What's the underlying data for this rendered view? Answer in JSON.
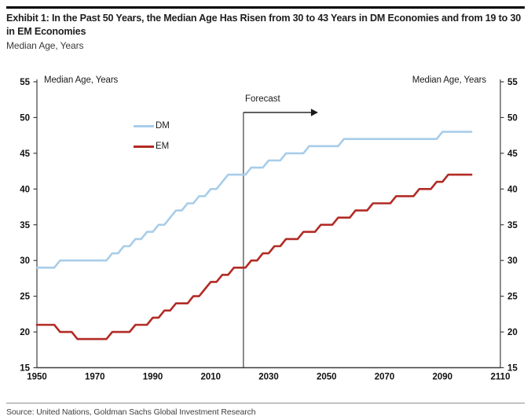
{
  "header": {
    "title": "Exhibit 1: In the Past 50 Years, the Median Age Has Risen from 30 to 43 Years in DM Economies and from 19 to 30 in EM Economies",
    "subtitle": "Median Age, Years"
  },
  "chart": {
    "left_axis_title": "Median Age, Years",
    "right_axis_title": "Median Age, Years",
    "forecast_label": "Forecast",
    "legend": [
      {
        "label": "DM",
        "color": "#a8cde9"
      },
      {
        "label": "EM",
        "color": "#b22b25"
      }
    ]
  },
  "chart_data": {
    "type": "line",
    "title": "Exhibit 1: In the Past 50 Years, the Median Age Has Risen from 30 to 43 Years in DM Economies and from 19 to 30 in EM Economies",
    "subtitle": "Median Age, Years",
    "xlabel": "",
    "ylabel": "Median Age, Years",
    "xlim": [
      1950,
      2110
    ],
    "ylim": [
      15,
      55
    ],
    "x_ticks": [
      1950,
      1970,
      1990,
      2010,
      2030,
      2050,
      2070,
      2090,
      2110
    ],
    "y_ticks": [
      15,
      20,
      25,
      30,
      35,
      40,
      45,
      50,
      55
    ],
    "grid": false,
    "legend_position": "upper-left-inside",
    "forecast_start_year": 2021.3,
    "x": [
      1950,
      1952,
      1954,
      1956,
      1958,
      1960,
      1962,
      1964,
      1966,
      1968,
      1970,
      1972,
      1974,
      1976,
      1978,
      1980,
      1982,
      1984,
      1986,
      1988,
      1990,
      1992,
      1994,
      1996,
      1998,
      2000,
      2002,
      2004,
      2006,
      2008,
      2010,
      2012,
      2014,
      2016,
      2018,
      2020,
      2022,
      2024,
      2026,
      2028,
      2030,
      2032,
      2034,
      2036,
      2038,
      2040,
      2042,
      2044,
      2046,
      2048,
      2050,
      2052,
      2054,
      2056,
      2058,
      2060,
      2062,
      2064,
      2066,
      2068,
      2070,
      2072,
      2074,
      2076,
      2078,
      2080,
      2082,
      2084,
      2086,
      2088,
      2090,
      2092,
      2094,
      2096,
      2098,
      2100
    ],
    "series": [
      {
        "name": "DM",
        "color": "#a8cde9",
        "values": [
          29,
          29,
          29,
          29,
          30,
          30,
          30,
          30,
          30,
          30,
          30,
          30,
          30,
          31,
          31,
          32,
          32,
          33,
          33,
          34,
          34,
          35,
          35,
          36,
          37,
          37,
          38,
          38,
          39,
          39,
          40,
          40,
          41,
          42,
          42,
          42,
          42,
          43,
          43,
          43,
          44,
          44,
          44,
          45,
          45,
          45,
          45,
          46,
          46,
          46,
          46,
          46,
          46,
          47,
          47,
          47,
          47,
          47,
          47,
          47,
          47,
          47,
          47,
          47,
          47,
          47,
          47,
          47,
          47,
          47,
          48,
          48,
          48,
          48,
          48,
          48
        ]
      },
      {
        "name": "EM",
        "color": "#b22b25",
        "values": [
          21,
          21,
          21,
          21,
          20,
          20,
          20,
          19,
          19,
          19,
          19,
          19,
          19,
          20,
          20,
          20,
          20,
          21,
          21,
          21,
          22,
          22,
          23,
          23,
          24,
          24,
          24,
          25,
          25,
          26,
          27,
          27,
          28,
          28,
          29,
          29,
          29,
          30,
          30,
          31,
          31,
          32,
          32,
          33,
          33,
          33,
          34,
          34,
          34,
          35,
          35,
          35,
          36,
          36,
          36,
          37,
          37,
          37,
          38,
          38,
          38,
          38,
          39,
          39,
          39,
          39,
          40,
          40,
          40,
          41,
          41,
          42,
          42,
          42,
          42,
          42
        ]
      }
    ]
  },
  "footer": {
    "source": "Source: United Nations, Goldman Sachs Global Investment Research"
  }
}
